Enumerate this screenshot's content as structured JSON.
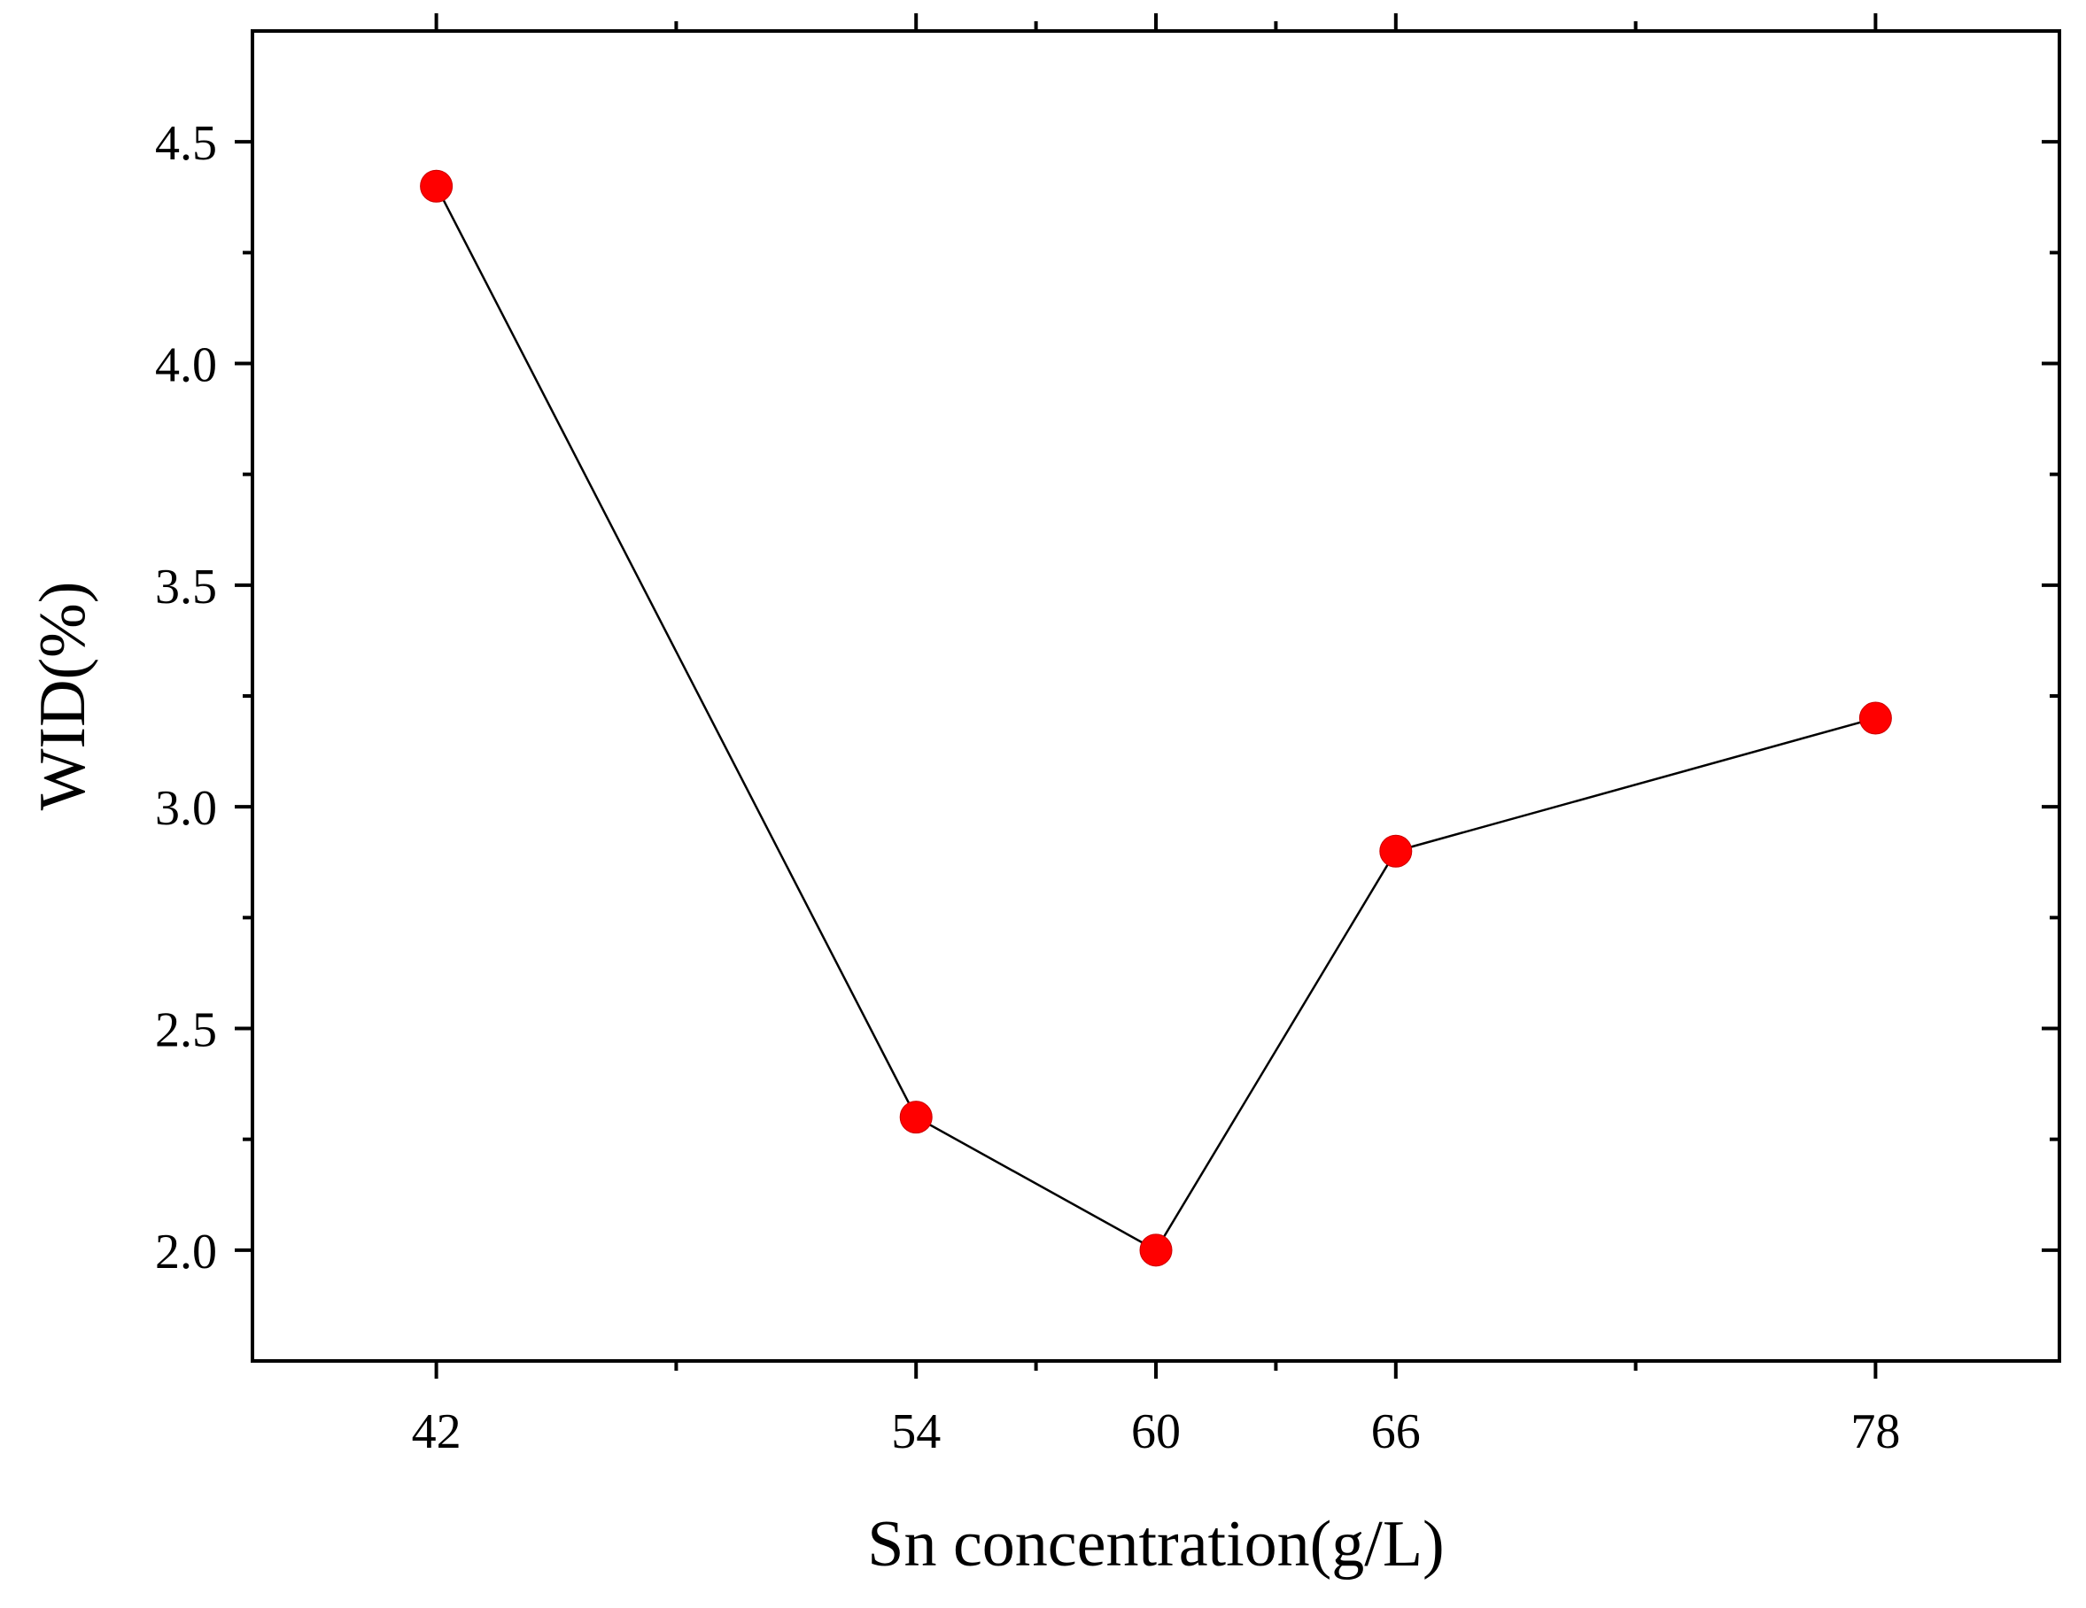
{
  "chart_data": {
    "type": "line",
    "xlabel": "Sn concentration(g/L)",
    "ylabel": "WID(%)",
    "x": [
      42,
      54,
      60,
      66,
      78
    ],
    "series": [
      {
        "values": [
          4.4,
          2.3,
          2.0,
          2.9,
          3.2
        ],
        "color": "#ff0000",
        "marker": "circle",
        "line_color": "#000000"
      }
    ],
    "xlim": [
      37.4,
      82.6
    ],
    "ylim": [
      1.75,
      4.75
    ],
    "x_major_ticks": [
      42,
      54,
      60,
      66,
      78
    ],
    "x_minor_ticks": [
      48,
      57,
      63,
      72
    ],
    "x_tick_labels": [
      "42",
      "54",
      "60",
      "66",
      "78"
    ],
    "y_major_ticks": [
      2.0,
      2.5,
      3.0,
      3.5,
      4.0,
      4.5
    ],
    "y_minor_ticks": [
      2.25,
      2.75,
      3.25,
      3.75,
      4.25
    ],
    "y_tick_labels": [
      "2.0",
      "2.5",
      "3.0",
      "3.5",
      "4.0",
      "4.5"
    ],
    "grid": false,
    "legend": "none"
  }
}
